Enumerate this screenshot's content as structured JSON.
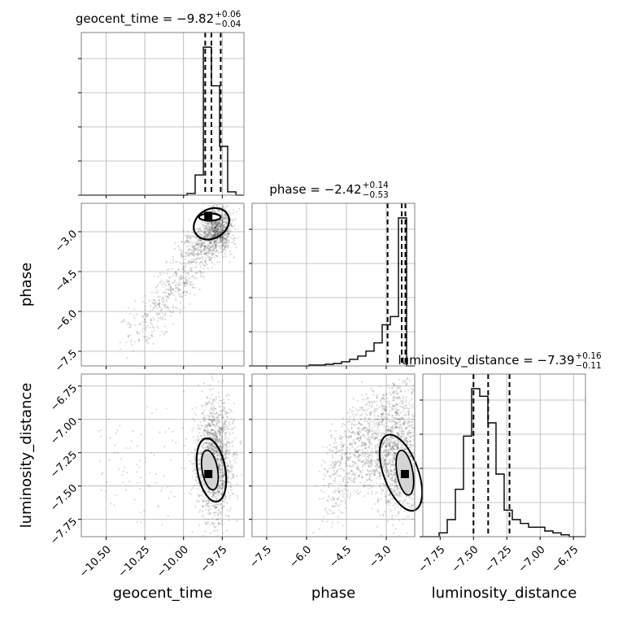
{
  "chart_data": {
    "type": "corner",
    "parameters": [
      "geocent_time",
      "phase",
      "luminosity_distance"
    ],
    "ranges": {
      "geocent_time": [
        -10.66,
        -9.61
      ],
      "phase": [
        -8.05,
        -1.93
      ],
      "luminosity_distance": [
        -7.88,
        -6.66
      ]
    },
    "ticks": {
      "geocent_time": [
        -10.5,
        -10.25,
        -10.0,
        -9.75
      ],
      "phase": [
        -7.5,
        -6.0,
        -4.5,
        -3.0
      ],
      "luminosity_distance": [
        -7.75,
        -7.5,
        -7.25,
        -7.0,
        -6.75
      ]
    },
    "tick_labels": {
      "geocent_time": [
        "−10.50",
        "−10.25",
        "−10.00",
        "−9.75"
      ],
      "phase": [
        "−7.5",
        "−6.0",
        "−4.5",
        "−3.0"
      ],
      "luminosity_distance": [
        "−7.75",
        "−7.50",
        "−7.25",
        "−7.00",
        "−6.75"
      ]
    },
    "titles": [
      {
        "param": "geocent_time",
        "main": "geocent_time = −9.82",
        "upper": "+0.06",
        "lower": "−0.04"
      },
      {
        "param": "phase",
        "main": "phase = −2.42",
        "upper": "+0.14",
        "lower": "−0.53"
      },
      {
        "param": "luminosity_distance",
        "main": "luminosity_distance = −7.39",
        "upper": "+0.16",
        "lower": "−0.11"
      }
    ],
    "quantiles": {
      "geocent_time": [
        -9.86,
        -9.82,
        -9.76
      ],
      "phase": [
        -2.95,
        -2.42,
        -2.28
      ],
      "luminosity_distance": [
        -7.5,
        -7.39,
        -7.23
      ]
    },
    "histograms": {
      "geocent_time": {
        "edges": [
          -10.66,
          -10.607,
          -10.555,
          -10.502,
          -10.45,
          -10.397,
          -10.345,
          -10.292,
          -10.24,
          -10.187,
          -10.135,
          -10.082,
          -10.03,
          -9.977,
          -9.925,
          -9.872,
          -9.82,
          -9.767,
          -9.715,
          -9.662,
          -9.61
        ],
        "counts": [
          0,
          0,
          0,
          0,
          0,
          0,
          0,
          0,
          0,
          0,
          0,
          0,
          0,
          1,
          12,
          88,
          65,
          29,
          2,
          0
        ]
      },
      "phase": {
        "edges": [
          -8.05,
          -7.744,
          -7.438,
          -7.132,
          -6.826,
          -6.52,
          -6.214,
          -5.908,
          -5.602,
          -5.296,
          -4.99,
          -4.684,
          -4.378,
          -4.072,
          -3.766,
          -3.46,
          -3.154,
          -2.848,
          -2.542,
          -2.236,
          -1.93
        ],
        "counts": [
          0,
          0,
          0,
          0,
          0,
          0,
          0,
          1,
          1,
          2,
          3,
          5,
          8,
          12,
          18,
          28,
          50,
          60,
          180,
          0
        ]
      },
      "luminosity_distance": {
        "edges": [
          -7.88,
          -7.819,
          -7.758,
          -7.697,
          -7.636,
          -7.575,
          -7.514,
          -7.453,
          -7.392,
          -7.331,
          -7.27,
          -7.209,
          -7.148,
          -7.087,
          -7.026,
          -6.965,
          -6.904,
          -6.843,
          -6.782,
          -6.721,
          -6.66
        ],
        "counts": [
          0,
          0,
          2,
          9,
          25,
          53,
          78,
          74,
          60,
          33,
          14,
          9,
          7,
          5,
          5,
          3,
          2,
          1,
          0,
          0
        ]
      }
    },
    "peak_2d": {
      "geocent_time|phase": [
        -9.84,
        -2.4
      ],
      "geocent_time|luminosity_distance": [
        -9.84,
        -7.41
      ],
      "phase|luminosity_distance": [
        -2.3,
        -7.41
      ]
    },
    "grid": true,
    "color": "#000000"
  }
}
